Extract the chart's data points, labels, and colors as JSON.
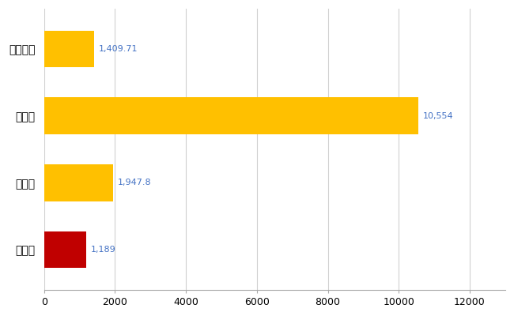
{
  "categories": [
    "全国平均",
    "県最大",
    "県平均",
    "氷見市"
  ],
  "values": [
    1409.71,
    10554,
    1947.8,
    1189
  ],
  "bar_colors": [
    "#FFC000",
    "#FFC000",
    "#FFC000",
    "#C00000"
  ],
  "value_labels": [
    "1,409.71",
    "10,554",
    "1,947.8",
    "1,189"
  ],
  "xlim": [
    0,
    13000
  ],
  "xticks": [
    0,
    2000,
    4000,
    6000,
    8000,
    10000,
    12000
  ],
  "background_color": "#ffffff",
  "grid_color": "#d0d0d0",
  "label_color": "#4472C4",
  "bar_height": 0.55
}
